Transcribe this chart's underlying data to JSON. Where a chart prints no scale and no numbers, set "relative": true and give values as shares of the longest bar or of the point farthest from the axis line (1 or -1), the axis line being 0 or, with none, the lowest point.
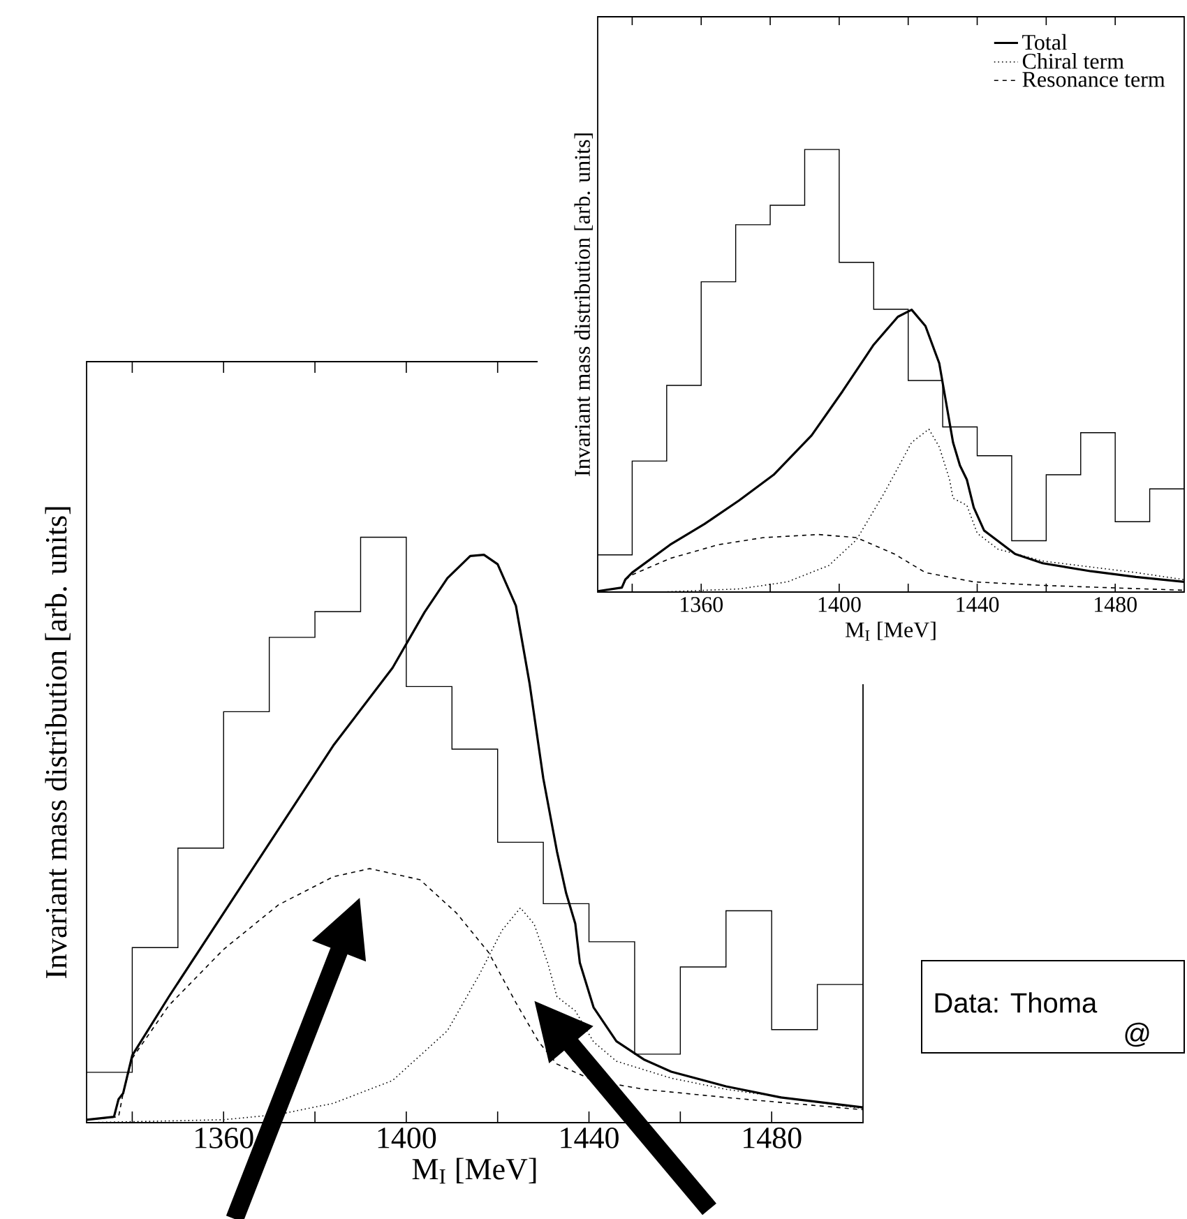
{
  "chart_data": [
    {
      "type": "histogram",
      "relative": true,
      "color": "#000000",
      "xlabel": "M$_{I}$ [MeV]",
      "ylabel": "Invariant mass distribution [arb. units]",
      "xlim": [
        1330,
        1500
      ],
      "xticks": [
        {
          "value": 1340,
          "label": null
        },
        1360,
        {
          "value": 1380,
          "label": null
        },
        1400,
        {
          "value": 1420,
          "label": null
        },
        1440,
        {
          "value": 1460,
          "label": null
        },
        1480
      ],
      "bins": [
        1330,
        1340,
        1350,
        1360,
        1370,
        1380,
        1390,
        1400,
        1410,
        1420,
        1430,
        1440,
        1450,
        1460,
        1470,
        1480,
        1490,
        1500
      ],
      "values": [
        0.086,
        0.299,
        0.469,
        0.702,
        0.829,
        0.873,
        1.0,
        0.745,
        0.638,
        0.479,
        0.374,
        0.309,
        0.117,
        0.266,
        0.362,
        0.159,
        0.236
      ],
      "series": [
        {
          "type": "line",
          "color": "#000000",
          "line_style": "solid",
          "x": [
            1330,
            1336,
            1337,
            1338,
            1340,
            1348,
            1360,
            1372,
            1384,
            1397,
            1404,
            1409,
            1414,
            1417,
            1420,
            1424,
            1427,
            1430,
            1433,
            1435,
            1437,
            1438,
            1441,
            1446,
            1452,
            1458,
            1470,
            1482,
            1500
          ],
          "values": [
            0.005,
            0.01,
            0.04,
            0.05,
            0.115,
            0.215,
            0.358,
            0.501,
            0.644,
            0.777,
            0.872,
            0.93,
            0.968,
            0.97,
            0.954,
            0.883,
            0.75,
            0.588,
            0.463,
            0.392,
            0.34,
            0.273,
            0.197,
            0.139,
            0.108,
            0.087,
            0.062,
            0.043,
            0.026
          ]
        },
        {
          "type": "line",
          "color": "#000000",
          "line_style": "dotted",
          "x": [
            1330,
            1360,
            1372,
            1384,
            1397,
            1409,
            1416,
            1421,
            1425,
            1428,
            1431,
            1433,
            1437,
            1441,
            1446,
            1458,
            1470,
            1500
          ],
          "values": [
            0.0,
            0.005,
            0.014,
            0.033,
            0.072,
            0.157,
            0.253,
            0.329,
            0.367,
            0.339,
            0.272,
            0.215,
            0.191,
            0.138,
            0.105,
            0.076,
            0.057,
            0.024
          ]
        },
        {
          "type": "line",
          "color": "#000000",
          "line_style": "dashed",
          "x": [
            1330,
            1337,
            1338,
            1340,
            1348,
            1360,
            1372,
            1384,
            1392,
            1403,
            1411,
            1418,
            1424,
            1429,
            1433,
            1441,
            1452,
            1470,
            1500
          ],
          "values": [
            0.005,
            0.01,
            0.05,
            0.11,
            0.2,
            0.296,
            0.372,
            0.42,
            0.434,
            0.415,
            0.358,
            0.291,
            0.205,
            0.138,
            0.1,
            0.072,
            0.057,
            0.043,
            0.022
          ]
        }
      ],
      "annotations": [
        "Data: Thoma",
        "@"
      ]
    },
    {
      "type": "histogram",
      "relative": true,
      "color": "#000000",
      "xlabel": "M$_{I}$ [MeV]",
      "ylabel": "Invariant mass distribution [arb. units]",
      "xlim": [
        1330,
        1500
      ],
      "legend": "top right",
      "xticks": [
        {
          "value": 1340,
          "label": null
        },
        1360,
        {
          "value": 1380,
          "label": null
        },
        1400,
        {
          "value": 1420,
          "label": null
        },
        1440,
        {
          "value": 1460,
          "label": null
        },
        1480
      ],
      "bins": [
        1330,
        1340,
        1350,
        1360,
        1370,
        1380,
        1390,
        1400,
        1410,
        1420,
        1430,
        1440,
        1450,
        1460,
        1470,
        1480,
        1490,
        1500
      ],
      "values": [
        0.084,
        0.296,
        0.467,
        0.701,
        0.83,
        0.874,
        1.0,
        0.745,
        0.639,
        0.478,
        0.373,
        0.308,
        0.116,
        0.265,
        0.36,
        0.159,
        0.233
      ],
      "series": [
        {
          "name": "Total",
          "type": "line",
          "color": "#000000",
          "line_style": "solid",
          "x": [
            1330,
            1337,
            1338,
            1340,
            1351,
            1361,
            1371,
            1381,
            1392,
            1401,
            1410,
            1417,
            1421,
            1425,
            1429,
            1433,
            1435,
            1437,
            1439,
            1442,
            1451,
            1459,
            1473,
            1486,
            1500
          ],
          "values": [
            0.002,
            0.01,
            0.028,
            0.044,
            0.107,
            0.154,
            0.207,
            0.265,
            0.354,
            0.454,
            0.559,
            0.622,
            0.638,
            0.601,
            0.517,
            0.338,
            0.286,
            0.254,
            0.191,
            0.139,
            0.086,
            0.065,
            0.047,
            0.034,
            0.023
          ]
        },
        {
          "name": "Chiral term",
          "type": "line",
          "color": "#000000",
          "line_style": "dotted",
          "x": [
            1348,
            1371,
            1385,
            1397,
            1405,
            1413,
            1421,
            1426,
            1429,
            1432,
            1433,
            1437,
            1440,
            1446,
            1459,
            1486,
            1500
          ],
          "values": [
            0.0,
            0.007,
            0.023,
            0.06,
            0.118,
            0.223,
            0.338,
            0.368,
            0.328,
            0.254,
            0.212,
            0.196,
            0.133,
            0.097,
            0.07,
            0.044,
            0.028
          ]
        },
        {
          "name": "Resonance term",
          "type": "line",
          "color": "#000000",
          "line_style": "dashed",
          "x": [
            1338,
            1340,
            1351,
            1365,
            1378,
            1394,
            1405,
            1416,
            1425,
            1439,
            1459,
            1500
          ],
          "values": [
            0.028,
            0.039,
            0.076,
            0.107,
            0.123,
            0.13,
            0.123,
            0.086,
            0.044,
            0.023,
            0.015,
            0.004
          ]
        }
      ]
    }
  ]
}
